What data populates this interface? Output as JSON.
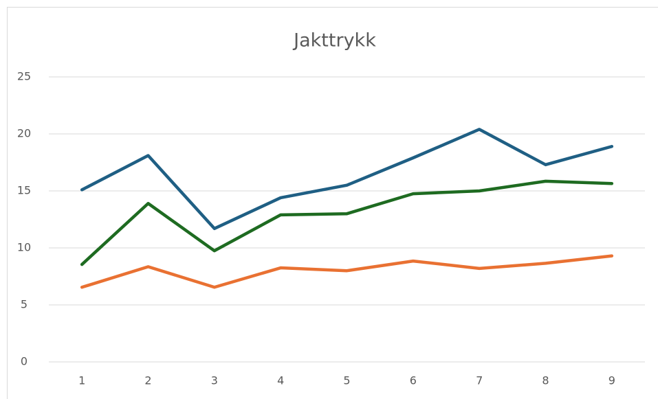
{
  "chart_data": {
    "type": "line",
    "title": "Jakttrykk",
    "categories": [
      "1",
      "2",
      "3",
      "4",
      "5",
      "6",
      "7",
      "8",
      "9"
    ],
    "series": [
      {
        "color": "#1f5f84",
        "values": [
          15.1,
          18.1,
          11.7,
          14.4,
          15.5,
          17.9,
          20.4,
          17.3,
          18.9
        ]
      },
      {
        "color": "#1e6b21",
        "values": [
          8.55,
          13.9,
          9.75,
          12.9,
          13.0,
          14.75,
          15.0,
          15.85,
          15.65
        ]
      },
      {
        "color": "#e97132",
        "values": [
          6.55,
          8.35,
          6.55,
          8.25,
          8.0,
          8.85,
          8.2,
          8.65,
          9.3
        ]
      }
    ],
    "ylim": [
      0,
      25
    ],
    "yticks": [
      0,
      5,
      10,
      15,
      20,
      25
    ],
    "grid": true
  }
}
